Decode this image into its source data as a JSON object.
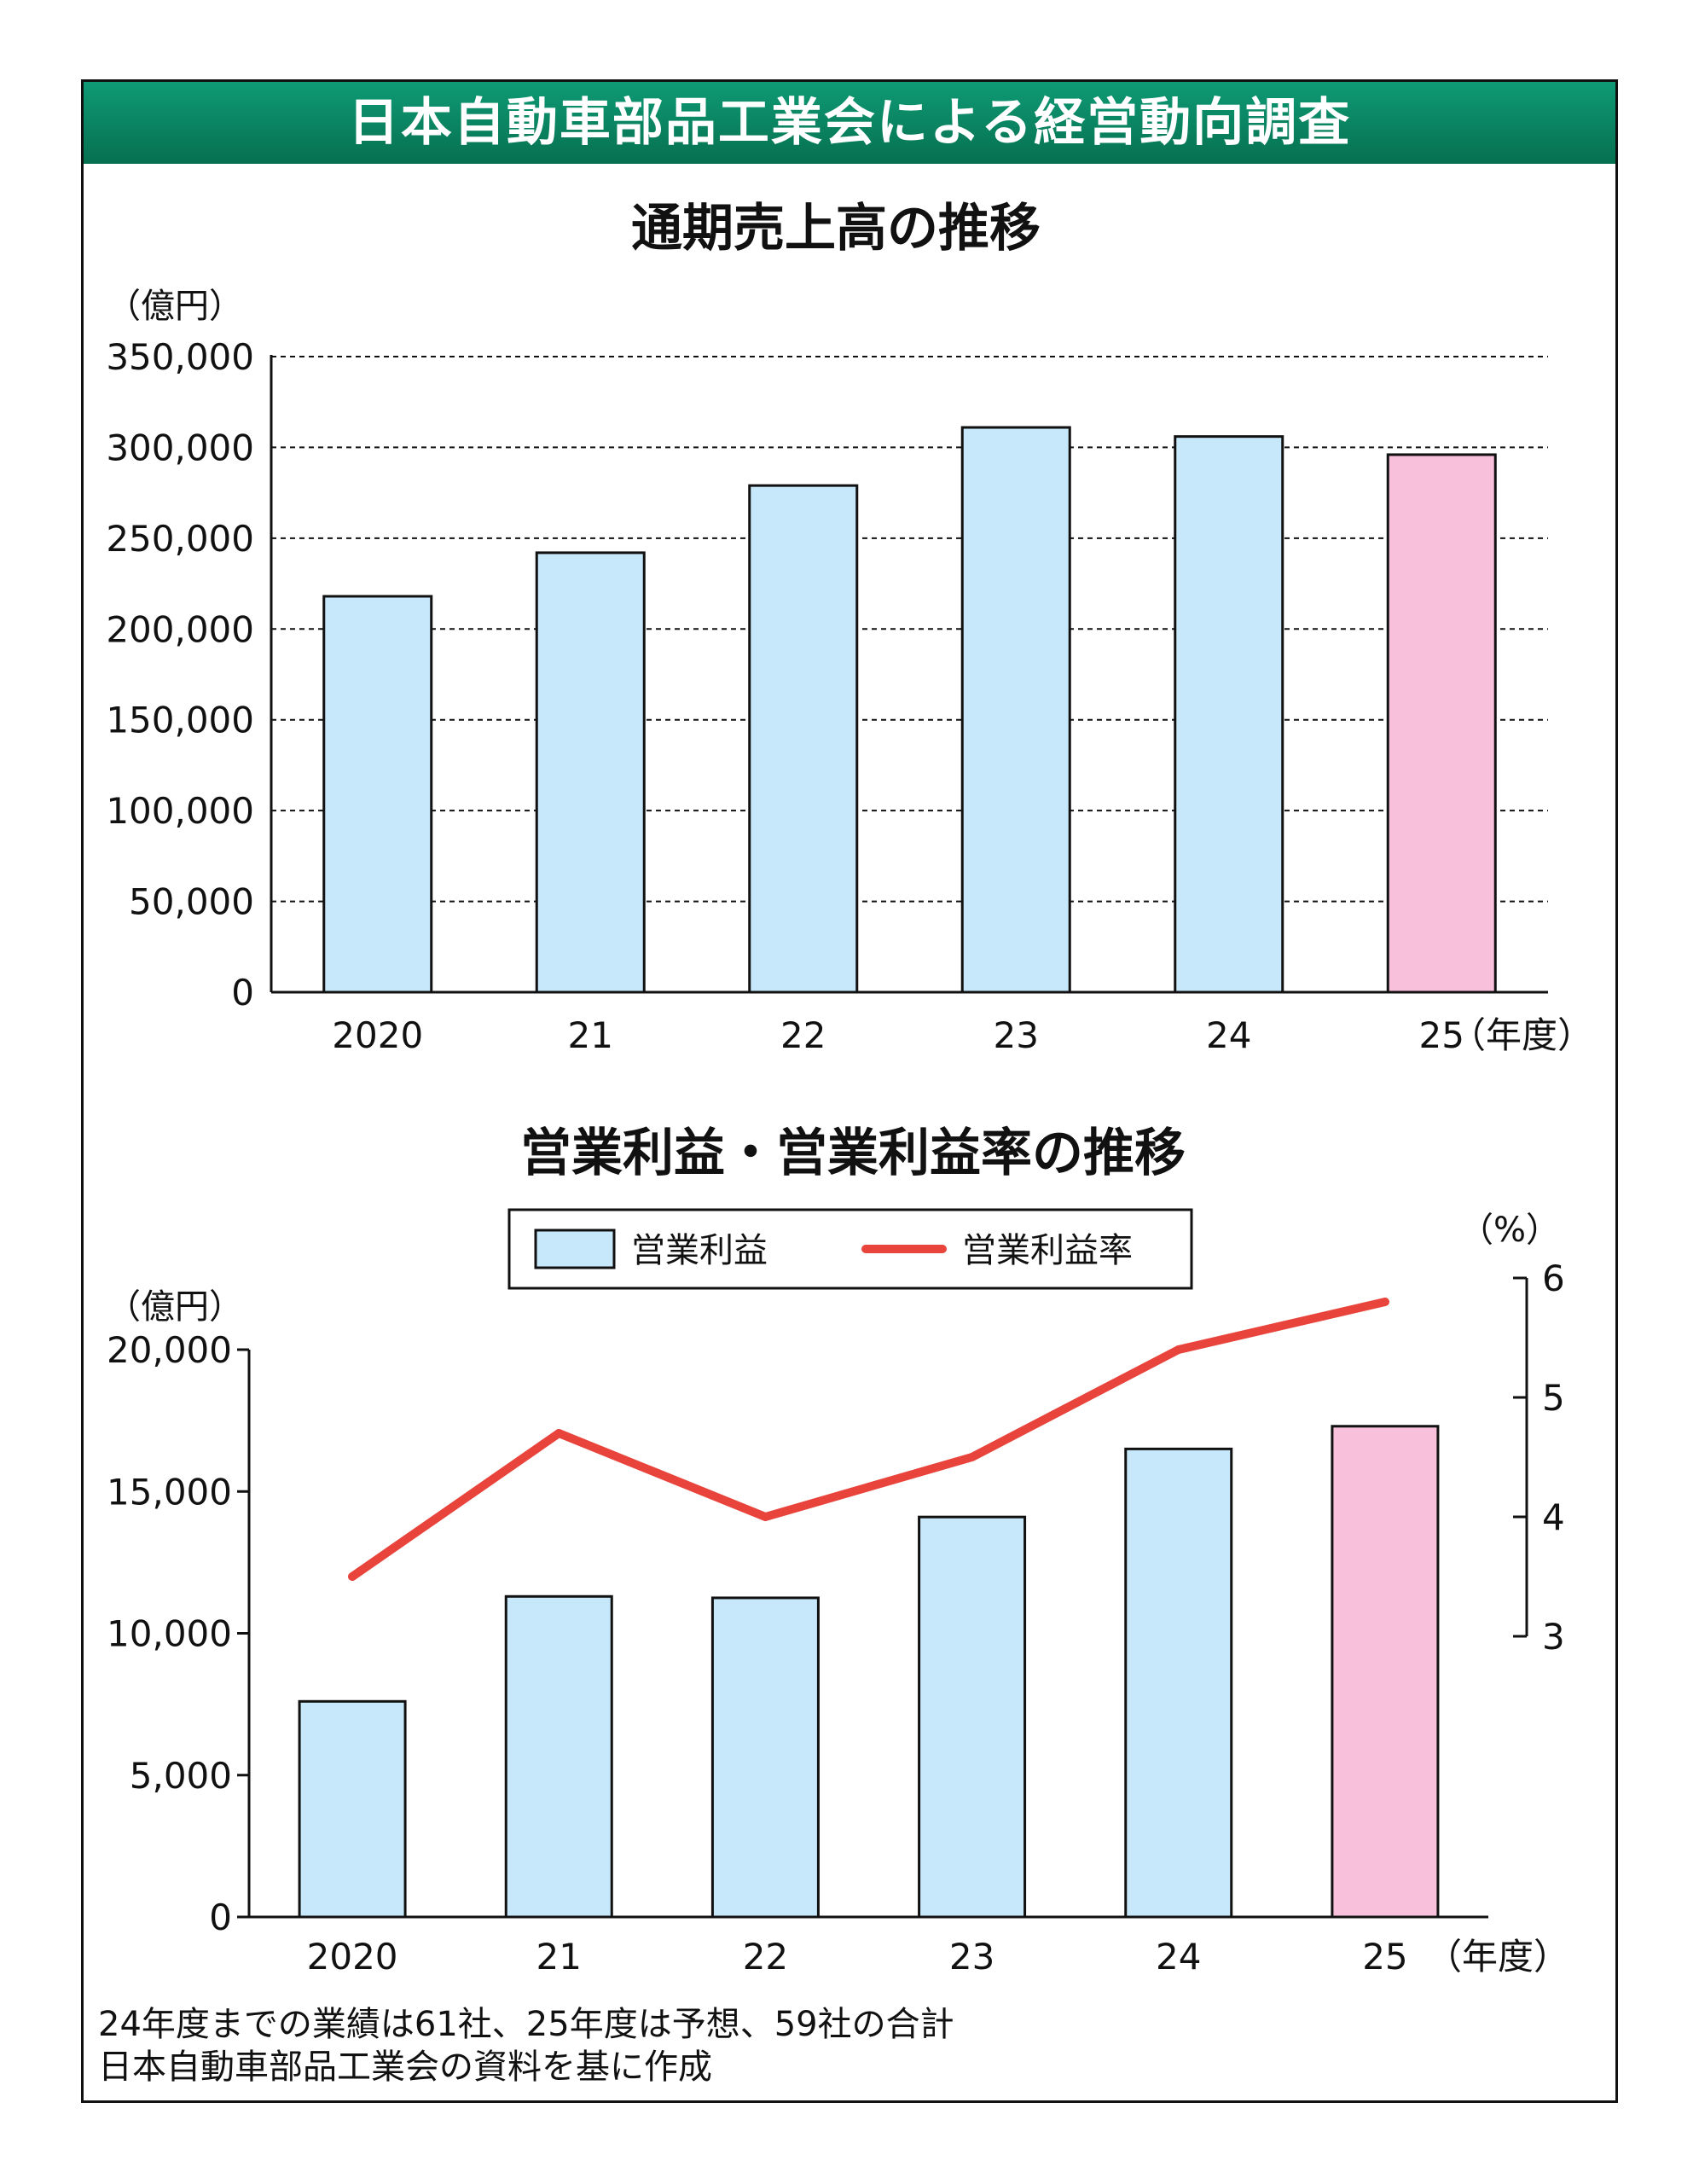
{
  "banner_title": "日本自動車部品工業会による経営動向調査",
  "chart_data": [
    {
      "type": "bar",
      "title": "通期売上高の推移",
      "y_unit": "（億円）",
      "x_unit": "（年度）",
      "categories": [
        "2020",
        "21",
        "22",
        "23",
        "24",
        "25"
      ],
      "values": [
        218000,
        242000,
        279000,
        311000,
        306000,
        296000
      ],
      "highlight_index": 5,
      "ylim": [
        0,
        350000
      ],
      "yticks": [
        "0",
        "50,000",
        "100,000",
        "150,000",
        "200,000",
        "250,000",
        "300,000",
        "350,000"
      ],
      "grid": "dashed",
      "colors": {
        "bar": "#c6e8fa",
        "forecast": "#f9c0dc",
        "stroke": "#111111"
      }
    },
    {
      "type": "bar",
      "title": "営業利益・営業利益率の推移",
      "y_unit": "（億円）",
      "y2_unit": "（%）",
      "x_unit": "（年度）",
      "categories": [
        "2020",
        "21",
        "22",
        "23",
        "24",
        "25"
      ],
      "series": [
        {
          "name": "営業利益",
          "type": "bar",
          "axis": "left",
          "values": [
            7600,
            11300,
            11250,
            14100,
            16500,
            17300
          ]
        },
        {
          "name": "営業利益率",
          "type": "line",
          "axis": "right",
          "values": [
            3.5,
            4.7,
            4.0,
            4.5,
            5.4,
            5.8
          ]
        }
      ],
      "highlight_index": 5,
      "ylim": [
        0,
        20000
      ],
      "yticks": [
        "0",
        "5,000",
        "10,000",
        "15,000",
        "20,000"
      ],
      "y2lim": [
        3,
        6
      ],
      "y2ticks": [
        "3",
        "4",
        "5",
        "6"
      ],
      "legend": "top",
      "colors": {
        "bar": "#c6e8fa",
        "forecast": "#f9c0dc",
        "line": "#e8443c",
        "stroke": "#111111"
      }
    }
  ],
  "notes": [
    "24年度までの業績は61社、25年度は予想、59社の合計",
    "日本自動車部品工業会の資料を基に作成"
  ]
}
